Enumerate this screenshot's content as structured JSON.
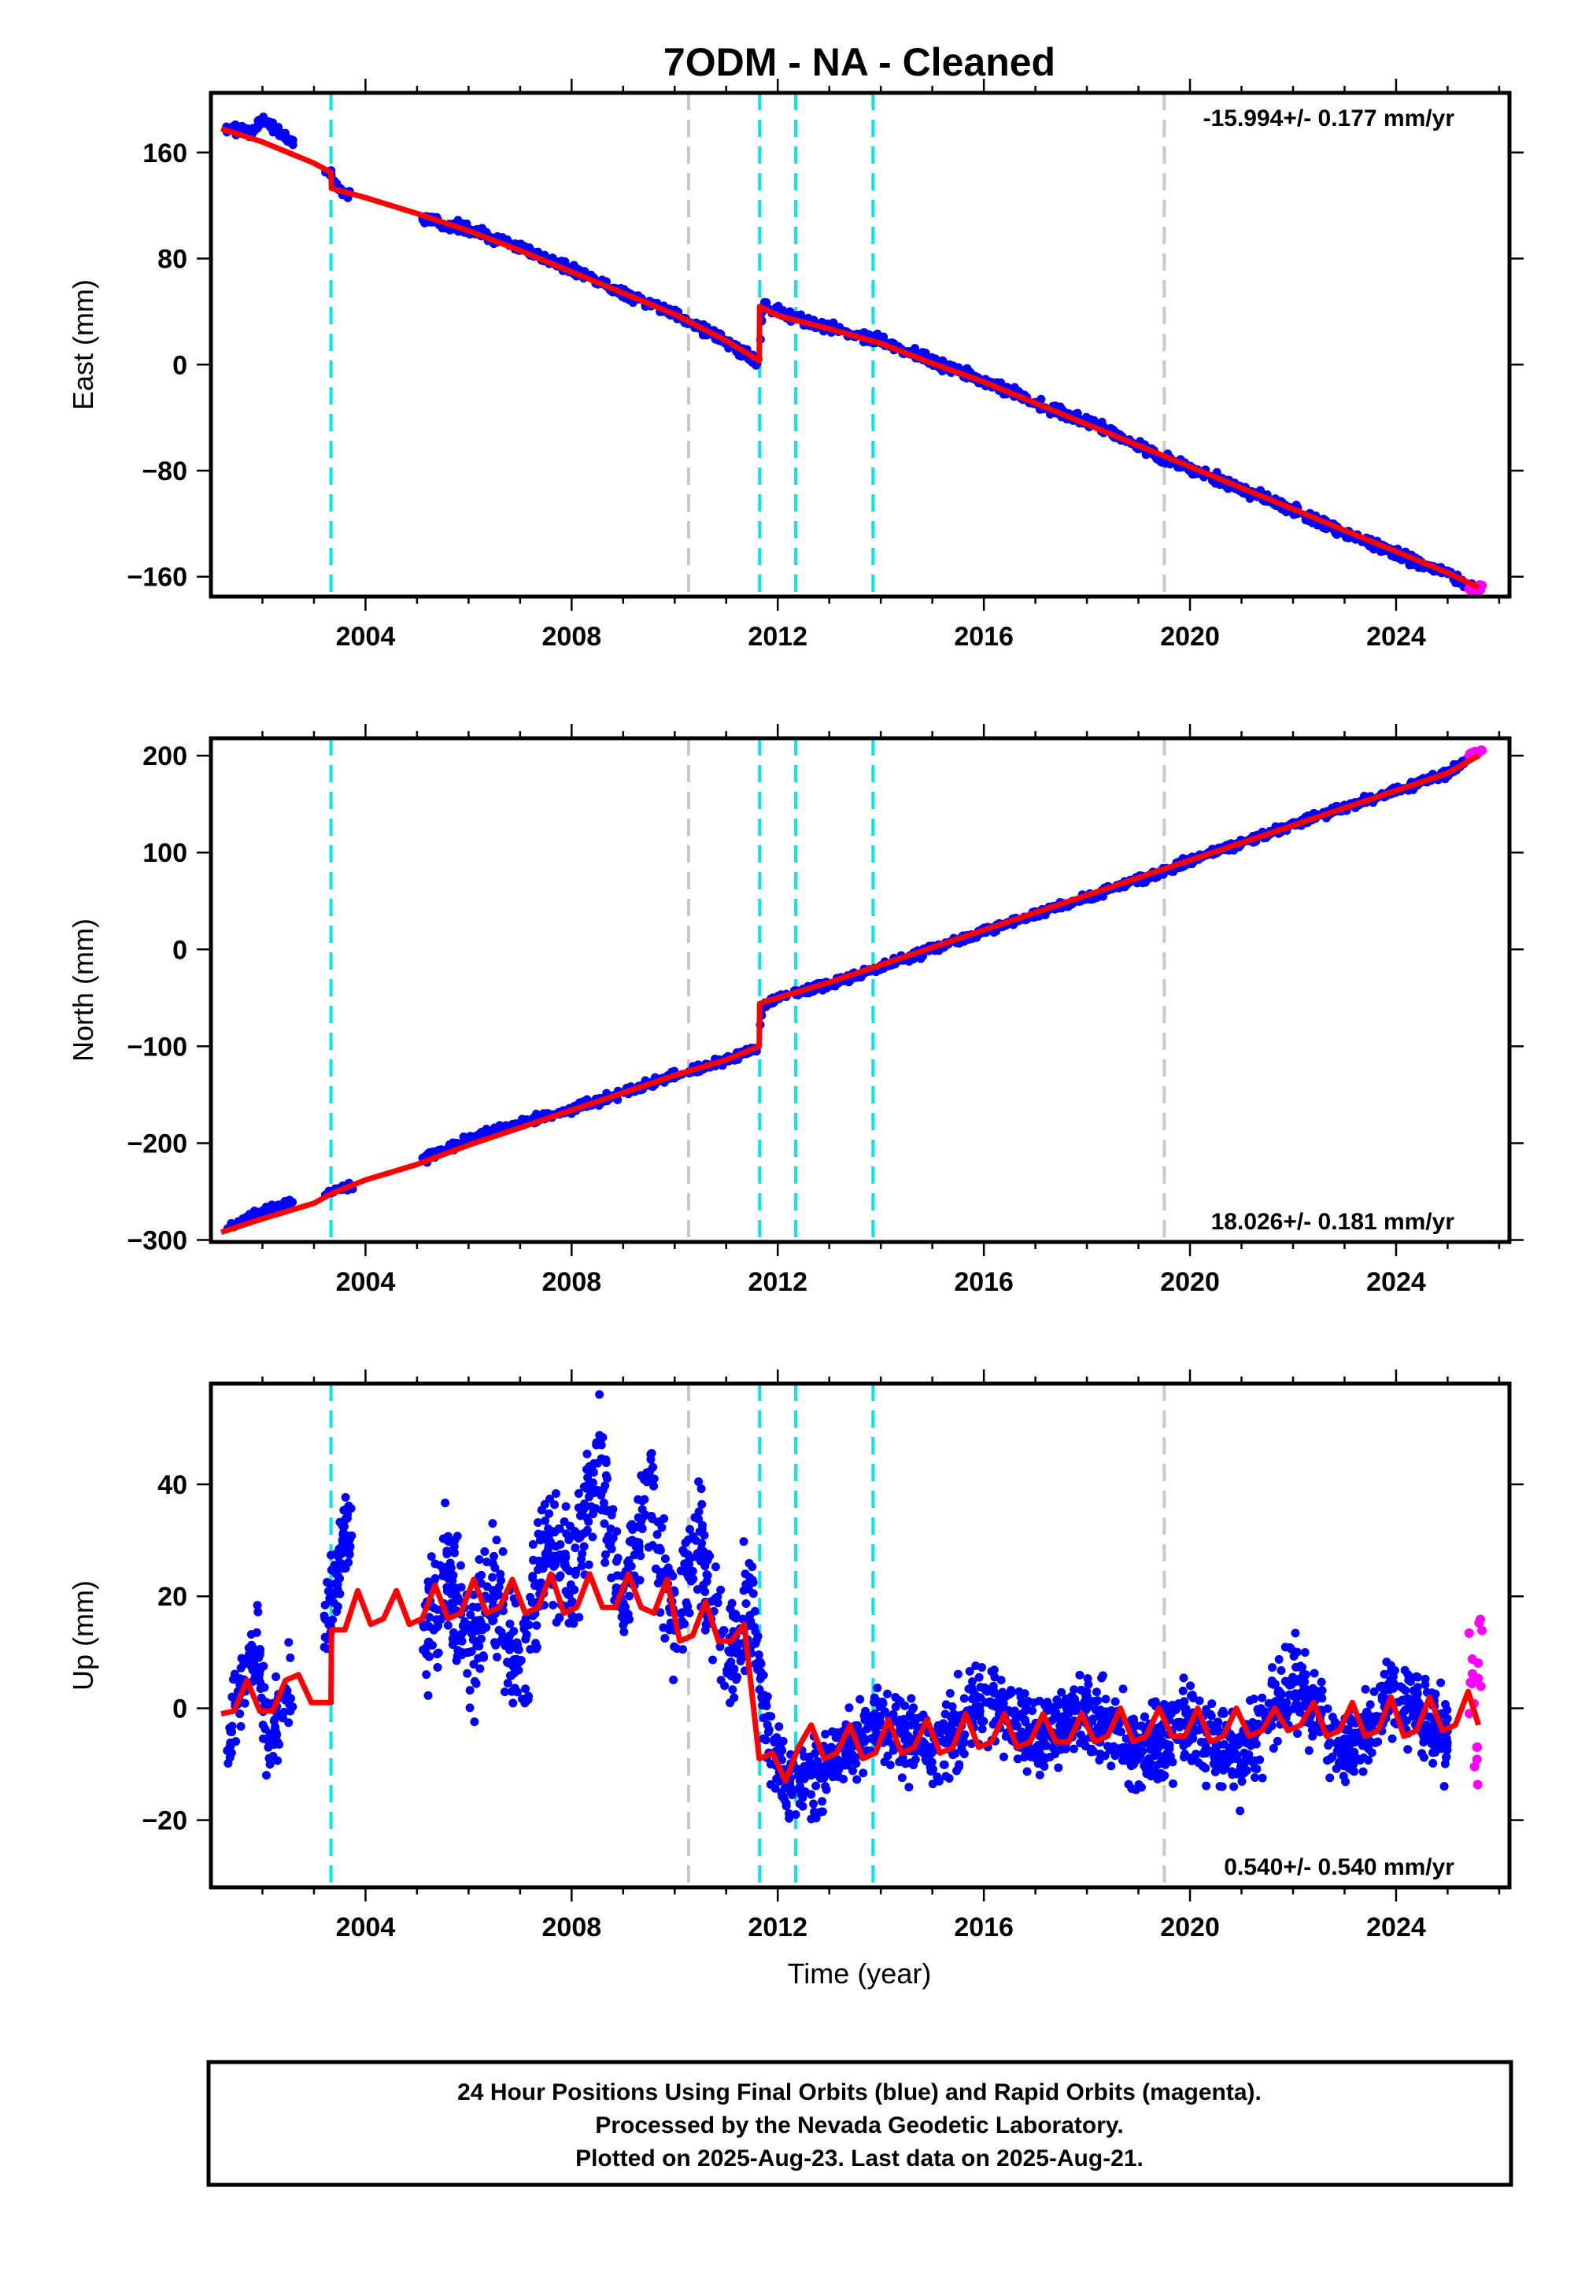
{
  "chart_data": [
    {
      "type": "scatter",
      "panel": "east",
      "title": "7ODM  - NA - Cleaned",
      "ylabel": "East (mm)",
      "xlabel": "",
      "xlim": [
        2001.0,
        2026.2
      ],
      "ylim": [
        -175,
        205
      ],
      "xticks": [
        2004,
        2008,
        2012,
        2016,
        2020,
        2024
      ],
      "yticks": [
        -160,
        -80,
        0,
        80,
        160
      ],
      "rate_text": "-15.994+/- 0.177 mm/yr",
      "rate_position": "top-right",
      "grid": false,
      "series": [
        {
          "name": "Final Orbits (blue)",
          "color": "#0000ff",
          "style": "points",
          "x": [
            2001.3,
            2001.8,
            2002.0,
            2003.0,
            2003.3,
            2003.5,
            2005.3,
            2006.0,
            2006.5,
            2007.0,
            2008.0,
            2009.0,
            2010.0,
            2010.8,
            2011.5,
            2011.65,
            2011.7,
            2012.0,
            2012.5,
            2013.0,
            2014.0,
            2015.0,
            2016.0,
            2017.0,
            2018.0,
            2019.0,
            2019.5,
            2020.0,
            2021.0,
            2022.0,
            2023.0,
            2024.0,
            2025.0,
            2025.5
          ],
          "y": [
            180,
            175,
            185,
            155,
            145,
            131,
            108,
            102,
            96,
            88,
            72,
            54,
            38,
            22,
            5,
            2,
            45,
            40,
            33,
            28,
            18,
            2,
            -12,
            -28,
            -44,
            -60,
            -72,
            -78,
            -94,
            -110,
            -126,
            -142,
            -158,
            -168
          ]
        },
        {
          "name": "Rapid Orbits (magenta)",
          "color": "#ff00ff",
          "style": "points",
          "x": [
            2025.45,
            2025.55,
            2025.63
          ],
          "y": [
            -169,
            -170,
            -168
          ]
        },
        {
          "name": "model",
          "color": "#ff0000",
          "style": "line",
          "x": [
            2001.2,
            2002.0,
            2003.0,
            2003.33,
            2003.34,
            2004.0,
            2005.0,
            2006.0,
            2007.0,
            2008.0,
            2009.0,
            2010.0,
            2011.0,
            2011.64,
            2011.65,
            2012.0,
            2013.0,
            2014.0,
            2015.0,
            2016.0,
            2017.0,
            2018.0,
            2019.0,
            2020.0,
            2021.0,
            2022.0,
            2023.0,
            2024.0,
            2025.0,
            2025.6
          ],
          "y": [
            178,
            168,
            152,
            145,
            133,
            126,
            114,
            101,
            86,
            70,
            54,
            38,
            18,
            3,
            44,
            37,
            27,
            16,
            1,
            -13,
            -29,
            -45,
            -61,
            -77,
            -93,
            -109,
            -125,
            -141,
            -157,
            -168
          ]
        }
      ]
    },
    {
      "type": "scatter",
      "panel": "north",
      "title": "",
      "ylabel": "North (mm)",
      "xlabel": "",
      "xlim": [
        2001.0,
        2026.2
      ],
      "ylim": [
        -302,
        218
      ],
      "xticks": [
        2004,
        2008,
        2012,
        2016,
        2020,
        2024
      ],
      "yticks": [
        -300,
        -200,
        -100,
        0,
        100,
        200
      ],
      "rate_text": "18.026+/- 0.181 mm/yr",
      "rate_position": "bottom-right",
      "grid": false,
      "series": [
        {
          "name": "Final Orbits (blue)",
          "color": "#0000ff",
          "style": "points",
          "x": [
            2001.3,
            2001.8,
            2002.0,
            2002.5,
            2003.3,
            2005.5,
            2006.0,
            2007.0,
            2008.0,
            2009.0,
            2010.0,
            2011.0,
            2011.6,
            2011.7,
            2012.0,
            2013.0,
            2014.0,
            2015.0,
            2016.0,
            2017.0,
            2018.0,
            2019.0,
            2019.5,
            2020.0,
            2021.0,
            2022.0,
            2023.0,
            2024.0,
            2025.0,
            2025.5
          ],
          "y": [
            -290,
            -275,
            -270,
            -262,
            -252,
            -208,
            -195,
            -180,
            -165,
            -148,
            -130,
            -115,
            -102,
            -58,
            -50,
            -36,
            -18,
            0,
            18,
            36,
            54,
            72,
            80,
            92,
            110,
            128,
            146,
            164,
            182,
            200
          ]
        },
        {
          "name": "Rapid Orbits (magenta)",
          "color": "#ff00ff",
          "style": "points",
          "x": [
            2025.45,
            2025.55,
            2025.63
          ],
          "y": [
            201,
            203,
            205
          ]
        },
        {
          "name": "model",
          "color": "#ff0000",
          "style": "line",
          "x": [
            2001.2,
            2002.0,
            2003.0,
            2003.34,
            2004.0,
            2005.0,
            2006.0,
            2007.0,
            2008.0,
            2009.0,
            2010.0,
            2011.0,
            2011.64,
            2011.65,
            2012.0,
            2013.0,
            2014.0,
            2015.0,
            2016.0,
            2017.0,
            2018.0,
            2019.0,
            2020.0,
            2021.0,
            2022.0,
            2023.0,
            2024.0,
            2025.0,
            2025.6
          ],
          "y": [
            -292,
            -278,
            -262,
            -252,
            -238,
            -222,
            -202,
            -184,
            -166,
            -148,
            -130,
            -114,
            -100,
            -56,
            -50,
            -34,
            -16,
            2,
            20,
            38,
            56,
            74,
            92,
            110,
            128,
            146,
            164,
            182,
            200
          ]
        }
      ]
    },
    {
      "type": "scatter",
      "panel": "up",
      "title": "",
      "ylabel": "Up (mm)",
      "xlabel": "Time (year)",
      "xlim": [
        2001.0,
        2026.2
      ],
      "ylim": [
        -32,
        58
      ],
      "xticks": [
        2004,
        2008,
        2012,
        2016,
        2020,
        2024
      ],
      "yticks": [
        -20,
        0,
        20,
        40
      ],
      "rate_text": "0.540+/- 0.540 mm/yr",
      "rate_position": "bottom-right",
      "grid": false,
      "series": [
        {
          "name": "Final Orbits (blue)",
          "color": "#0000ff",
          "style": "points",
          "x": [
            2001.3,
            2001.6,
            2001.9,
            2002.1,
            2003.4,
            2003.6,
            2005.2,
            2005.6,
            2006.0,
            2006.5,
            2007.0,
            2007.5,
            2008.0,
            2008.5,
            2009.0,
            2009.5,
            2010.0,
            2010.5,
            2011.0,
            2011.5,
            2011.8,
            2012.3,
            2013.0,
            2014.0,
            2015.0,
            2016.0,
            2017.0,
            2018.0,
            2019.0,
            2020.0,
            2021.0,
            2022.0,
            2023.0,
            2024.0,
            2025.0
          ],
          "y": [
            -8,
            5,
            10,
            -5,
            20,
            32,
            15,
            25,
            10,
            20,
            5,
            30,
            22,
            45,
            18,
            40,
            15,
            30,
            8,
            20,
            -5,
            -15,
            -10,
            -2,
            -8,
            2,
            -6,
            0,
            -8,
            -3,
            -10,
            5,
            -8,
            3,
            -5
          ]
        },
        {
          "name": "Rapid Orbits (magenta)",
          "color": "#ff00ff",
          "style": "points",
          "x": [
            2025.45,
            2025.55,
            2025.63
          ],
          "y": [
            5,
            -5,
            8
          ]
        },
        {
          "name": "model",
          "color": "#ff0000",
          "style": "line",
          "x": [
            2001.2,
            2001.45,
            2001.7,
            2001.95,
            2002.2,
            2002.45,
            2002.7,
            2002.95,
            2003.2,
            2003.33,
            2003.34,
            2003.6,
            2003.85,
            2004.1,
            2004.35,
            2004.6,
            2004.85,
            2005.1,
            2005.35,
            2005.6,
            2005.85,
            2006.1,
            2006.35,
            2006.6,
            2006.85,
            2007.1,
            2007.35,
            2007.6,
            2007.85,
            2008.1,
            2008.35,
            2008.6,
            2008.85,
            2009.1,
            2009.35,
            2009.6,
            2009.85,
            2010.1,
            2010.35,
            2010.6,
            2010.85,
            2011.1,
            2011.35,
            2011.64,
            2011.65,
            2011.9,
            2012.15,
            2012.4,
            2012.65,
            2012.9,
            2013.15,
            2013.4,
            2013.65,
            2013.9,
            2014.15,
            2014.4,
            2014.65,
            2014.9,
            2015.15,
            2015.4,
            2015.65,
            2015.9,
            2016.15,
            2016.4,
            2016.65,
            2016.9,
            2017.15,
            2017.4,
            2017.65,
            2017.9,
            2018.15,
            2018.4,
            2018.65,
            2018.9,
            2019.15,
            2019.4,
            2019.65,
            2019.9,
            2020.15,
            2020.4,
            2020.65,
            2020.9,
            2021.15,
            2021.4,
            2021.65,
            2021.9,
            2022.15,
            2022.4,
            2022.65,
            2022.9,
            2023.15,
            2023.4,
            2023.65,
            2023.9,
            2024.15,
            2024.4,
            2024.65,
            2024.9,
            2025.15,
            2025.4,
            2025.6
          ],
          "y": [
            -1,
            -0.5,
            5,
            -0.5,
            -0.5,
            5,
            6,
            1,
            1,
            1,
            14,
            14,
            21,
            15,
            16,
            21,
            15,
            16,
            22,
            16,
            17,
            23,
            17,
            18,
            23,
            17,
            18,
            24,
            17,
            18,
            24,
            18,
            18,
            24,
            18,
            17,
            23,
            12,
            13,
            19,
            12,
            12,
            15,
            -9,
            -9,
            -8,
            -13,
            -7,
            -3,
            -9,
            -8,
            -3,
            -9,
            -8,
            -2,
            -8,
            -7,
            -2,
            -8,
            -7,
            -1,
            -7,
            -6,
            -1,
            -7,
            -6,
            -1,
            -6,
            -6,
            -1,
            -6,
            -5,
            0,
            -6,
            -5,
            0,
            -5,
            -5,
            0,
            -6,
            -5,
            0,
            -5,
            -4,
            0,
            -4,
            -3,
            1,
            -5,
            -4,
            1,
            -5,
            -4,
            2,
            -5,
            -4,
            2,
            -4,
            -3,
            3,
            -3
          ]
        }
      ]
    }
  ],
  "vlines": {
    "cyan": [
      2003.33,
      2011.65,
      2012.35,
      2013.85
    ],
    "gray": [
      2010.27,
      2019.5
    ],
    "cyan_color": "#00e5ee",
    "gray_color": "#c8c8c8"
  },
  "footer": {
    "line1": "24 Hour Positions Using Final Orbits (blue) and Rapid Orbits (magenta).",
    "line2": "Processed by the Nevada Geodetic Laboratory.",
    "line3": "Plotted on 2025-Aug-23. Last data on 2025-Aug-21."
  }
}
